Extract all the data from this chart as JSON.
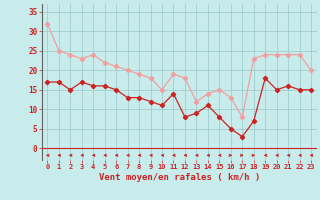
{
  "x": [
    0,
    1,
    2,
    3,
    4,
    5,
    6,
    7,
    8,
    9,
    10,
    11,
    12,
    13,
    14,
    15,
    16,
    17,
    18,
    19,
    20,
    21,
    22,
    23
  ],
  "wind_avg": [
    17,
    17,
    15,
    17,
    16,
    16,
    15,
    13,
    13,
    12,
    11,
    14,
    8,
    9,
    11,
    8,
    5,
    3,
    7,
    18,
    15,
    16,
    15,
    15
  ],
  "wind_gust": [
    32,
    25,
    24,
    23,
    24,
    22,
    21,
    20,
    19,
    18,
    15,
    19,
    18,
    12,
    14,
    15,
    13,
    8,
    23,
    24,
    24,
    24,
    24,
    20
  ],
  "wind_dir": [
    -1,
    -1,
    -1,
    -1,
    -1,
    -1,
    -1,
    -1,
    -1,
    -1,
    -1,
    -1,
    -1,
    -1,
    -1,
    -1,
    1,
    1,
    1,
    -1,
    -1,
    -1,
    -1,
    -1
  ],
  "avg_color": "#cc2222",
  "gust_color": "#f0a0a0",
  "bg_color": "#c8ecec",
  "grid_color": "#98c8c8",
  "axis_color": "#cc2222",
  "xlabel": "Vent moyen/en rafales ( km/h )",
  "ylim": [
    -3,
    37
  ],
  "yticks": [
    0,
    5,
    10,
    15,
    20,
    25,
    30,
    35
  ],
  "xlim": [
    -0.5,
    23.5
  ]
}
